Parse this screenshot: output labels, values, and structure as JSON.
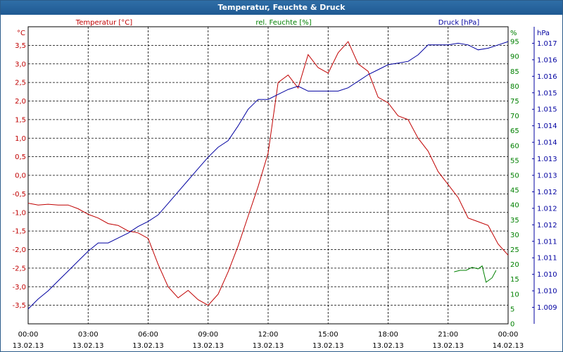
{
  "window": {
    "title": "Temperatur, Feuchte & Druck"
  },
  "colors": {
    "temperature": "#c00000",
    "humidity": "#008000",
    "pressure": "#0000a0",
    "grid": "#000000",
    "title_bg": "#1f5a92"
  },
  "chart_data": {
    "type": "line",
    "title": "Temperatur, Feuchte & Druck",
    "legend": [
      "Temperatur [°C]",
      "rel. Feuchte [%]",
      "Druck [hPa]"
    ],
    "axes": {
      "left": {
        "unit": "°C",
        "range": [
          -4.0,
          4.0
        ],
        "ticks": [
          "3,5",
          "3,0",
          "2,5",
          "2,0",
          "1,5",
          "1,0",
          "0,5",
          "0,0",
          "-0,5",
          "-1,0",
          "-1,5",
          "-2,0",
          "-2,5",
          "-3,0",
          "-3,5"
        ],
        "tick_values": [
          3.5,
          3.0,
          2.5,
          2.0,
          1.5,
          1.0,
          0.5,
          0.0,
          -0.5,
          -1.0,
          -1.5,
          -2.0,
          -2.5,
          -3.0,
          -3.5
        ]
      },
      "humidity": {
        "unit": "%",
        "range": [
          0,
          100
        ],
        "ticks": [
          "95",
          "90",
          "85",
          "80",
          "75",
          "70",
          "65",
          "60",
          "55",
          "50",
          "45",
          "40",
          "35",
          "30",
          "25",
          "20",
          "15",
          "10",
          "5",
          "0"
        ],
        "tick_values": [
          95,
          90,
          85,
          80,
          75,
          70,
          65,
          60,
          55,
          50,
          45,
          40,
          35,
          30,
          25,
          20,
          15,
          10,
          5,
          0
        ]
      },
      "pressure": {
        "unit": "hPa",
        "range": [
          1008.5,
          1017.5
        ],
        "ticks": [
          "1.017",
          "1.016",
          "1.016",
          "1.015",
          "1.015",
          "1.014",
          "1.014",
          "1.013",
          "1.013",
          "1.012",
          "1.012",
          "1.012",
          "1.011",
          "1.011",
          "1.010",
          "1.010",
          "1.009"
        ],
        "tick_values": [
          1017.0,
          1016.5,
          1016.0,
          1015.5,
          1015.0,
          1014.5,
          1014.0,
          1013.5,
          1013.0,
          1012.5,
          1012.0,
          1011.5,
          1011.0,
          1010.5,
          1010.0,
          1009.5,
          1009.0
        ]
      },
      "x": {
        "range": [
          0,
          24
        ],
        "time_labels": [
          "00:00",
          "03:00",
          "06:00",
          "09:00",
          "12:00",
          "15:00",
          "18:00",
          "21:00",
          "00:00"
        ],
        "date_labels": [
          "13.02.13",
          "13.02.13",
          "13.02.13",
          "13.02.13",
          "13.02.13",
          "13.02.13",
          "13.02.13",
          "13.02.13",
          "14.02.13"
        ]
      }
    },
    "series": [
      {
        "name": "Temperatur [°C]",
        "axis": "left",
        "points": [
          [
            0,
            -0.75
          ],
          [
            0.5,
            -0.8
          ],
          [
            1.0,
            -0.78
          ],
          [
            1.5,
            -0.8
          ],
          [
            2.0,
            -0.8
          ],
          [
            2.5,
            -0.9
          ],
          [
            3.0,
            -1.05
          ],
          [
            3.5,
            -1.15
          ],
          [
            4.0,
            -1.3
          ],
          [
            4.5,
            -1.35
          ],
          [
            5.0,
            -1.5
          ],
          [
            5.5,
            -1.55
          ],
          [
            6.0,
            -1.7
          ],
          [
            6.5,
            -2.4
          ],
          [
            7.0,
            -3.0
          ],
          [
            7.5,
            -3.3
          ],
          [
            8.0,
            -3.1
          ],
          [
            8.5,
            -3.35
          ],
          [
            9.0,
            -3.5
          ],
          [
            9.5,
            -3.2
          ],
          [
            10.0,
            -2.6
          ],
          [
            10.5,
            -1.9
          ],
          [
            11.0,
            -1.1
          ],
          [
            11.5,
            -0.3
          ],
          [
            12.0,
            0.6
          ],
          [
            12.5,
            2.5
          ],
          [
            13.0,
            2.7
          ],
          [
            13.5,
            2.35
          ],
          [
            14.0,
            3.25
          ],
          [
            14.5,
            2.9
          ],
          [
            15.0,
            2.75
          ],
          [
            15.5,
            3.3
          ],
          [
            16.0,
            3.6
          ],
          [
            16.5,
            3.0
          ],
          [
            17.0,
            2.8
          ],
          [
            17.5,
            2.1
          ],
          [
            18.0,
            1.95
          ],
          [
            18.5,
            1.6
          ],
          [
            19.0,
            1.5
          ],
          [
            19.5,
            1.0
          ],
          [
            20.0,
            0.65
          ],
          [
            20.5,
            0.1
          ],
          [
            21.0,
            -0.25
          ],
          [
            21.5,
            -0.6
          ],
          [
            22.0,
            -1.15
          ],
          [
            22.5,
            -1.25
          ],
          [
            23.0,
            -1.35
          ],
          [
            23.5,
            -1.85
          ],
          [
            24.0,
            -2.15
          ]
        ]
      },
      {
        "name": "rel. Feuchte [%]",
        "axis": "humidity",
        "points": [
          [
            21.3,
            17.5
          ],
          [
            21.6,
            18.0
          ],
          [
            21.9,
            18.0
          ],
          [
            22.2,
            19.0
          ],
          [
            22.5,
            18.5
          ],
          [
            22.7,
            19.5
          ],
          [
            22.9,
            14.0
          ],
          [
            23.2,
            15.5
          ],
          [
            23.4,
            18.0
          ]
        ]
      },
      {
        "name": "Druck [hPa]",
        "axis": "pressure",
        "points": [
          [
            0,
            1008.95
          ],
          [
            0.5,
            1009.25
          ],
          [
            1.0,
            1009.5
          ],
          [
            1.5,
            1009.8
          ],
          [
            2.0,
            1010.1
          ],
          [
            2.5,
            1010.4
          ],
          [
            3.0,
            1010.7
          ],
          [
            3.5,
            1010.95
          ],
          [
            4.0,
            1010.95
          ],
          [
            4.5,
            1011.1
          ],
          [
            5.0,
            1011.25
          ],
          [
            5.5,
            1011.45
          ],
          [
            6.0,
            1011.6
          ],
          [
            6.5,
            1011.8
          ],
          [
            7.0,
            1012.15
          ],
          [
            7.5,
            1012.5
          ],
          [
            8.0,
            1012.85
          ],
          [
            8.5,
            1013.2
          ],
          [
            9.0,
            1013.55
          ],
          [
            9.5,
            1013.85
          ],
          [
            10.0,
            1014.05
          ],
          [
            10.5,
            1014.5
          ],
          [
            11.0,
            1015.0
          ],
          [
            11.5,
            1015.3
          ],
          [
            12.0,
            1015.3
          ],
          [
            12.5,
            1015.45
          ],
          [
            13.0,
            1015.6
          ],
          [
            13.5,
            1015.7
          ],
          [
            14.0,
            1015.55
          ],
          [
            14.5,
            1015.55
          ],
          [
            15.0,
            1015.55
          ],
          [
            15.5,
            1015.55
          ],
          [
            16.0,
            1015.65
          ],
          [
            16.5,
            1015.85
          ],
          [
            17.0,
            1016.05
          ],
          [
            17.5,
            1016.2
          ],
          [
            18.0,
            1016.35
          ],
          [
            18.5,
            1016.4
          ],
          [
            19.0,
            1016.45
          ],
          [
            19.5,
            1016.65
          ],
          [
            20.0,
            1016.95
          ],
          [
            20.5,
            1016.95
          ],
          [
            21.0,
            1016.95
          ],
          [
            21.5,
            1017.0
          ],
          [
            22.0,
            1016.95
          ],
          [
            22.5,
            1016.8
          ],
          [
            23.0,
            1016.85
          ],
          [
            23.5,
            1016.95
          ],
          [
            24.0,
            1017.05
          ]
        ]
      }
    ]
  }
}
